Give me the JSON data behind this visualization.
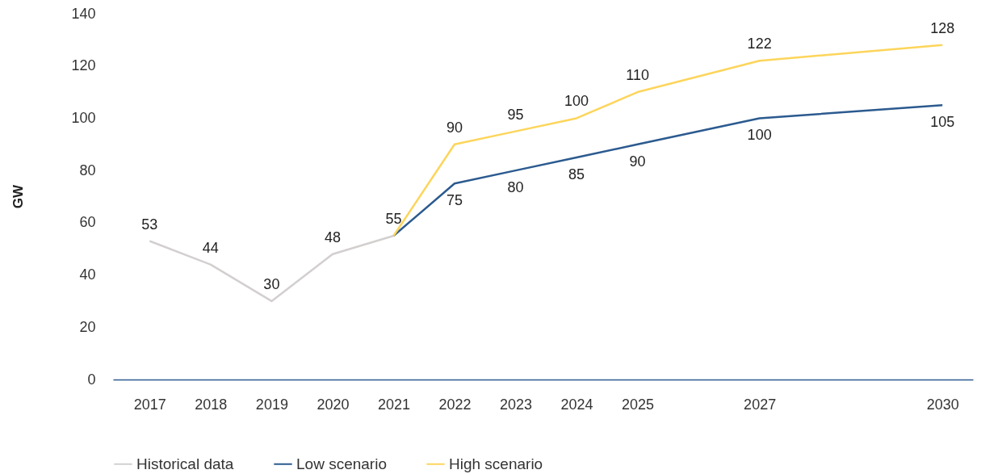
{
  "chart_data": {
    "type": "line",
    "ylabel": "GW",
    "xlim": [
      2016.4,
      2030.5
    ],
    "xticks": [
      2017,
      2018,
      2019,
      2020,
      2021,
      2022,
      2023,
      2024,
      2025,
      2027,
      2030
    ],
    "ylim": [
      0,
      140
    ],
    "yticks": [
      0,
      20,
      40,
      60,
      80,
      100,
      120,
      140
    ],
    "series": [
      {
        "name": "Historical data",
        "color": "#d3cfcf",
        "x": [
          2017,
          2018,
          2019,
          2020,
          2021
        ],
        "values": [
          53,
          44,
          30,
          48,
          55
        ],
        "value_labels": [
          "53",
          "44",
          "30",
          "48",
          "55"
        ]
      },
      {
        "name": "Low scenario",
        "color": "#2b5a8f",
        "x": [
          2021,
          2022,
          2023,
          2024,
          2025,
          2027,
          2030
        ],
        "values": [
          55,
          75,
          80,
          85,
          90,
          100,
          105
        ],
        "value_labels": [
          null,
          "75",
          "80",
          "85",
          "90",
          "100",
          "105"
        ]
      },
      {
        "name": "High scenario",
        "color": "#fdd55b",
        "x": [
          2021,
          2022,
          2023,
          2024,
          2025,
          2027,
          2030
        ],
        "values": [
          55,
          90,
          95,
          100,
          110,
          122,
          128
        ],
        "value_labels": [
          null,
          "90",
          "95",
          "100",
          "110",
          "122",
          "128"
        ]
      }
    ],
    "grid": false,
    "legend": "bottom",
    "marker": "none",
    "line_style": "solid"
  }
}
